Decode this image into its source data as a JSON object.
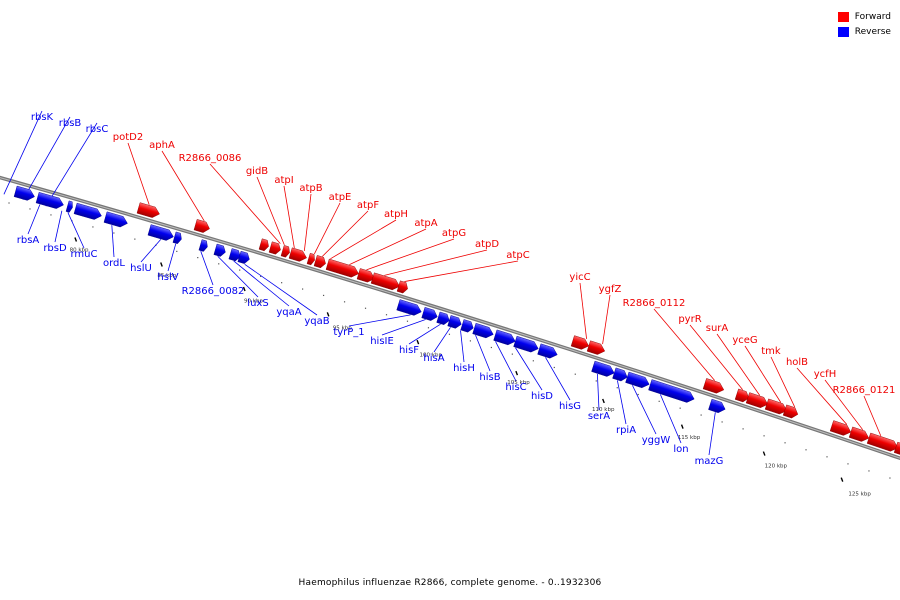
{
  "caption": "Haemophilus influenzae R2866, complete genome. - 0..1932306",
  "legend": [
    {
      "label": "Forward",
      "color": "#ff0000"
    },
    {
      "label": "Reverse",
      "color": "#0000ff"
    }
  ],
  "colors": {
    "forward": "#ee0000",
    "reverse": "#0000ee",
    "backbone": "#777777"
  },
  "ticks": [
    "80 kbp",
    "85 kbp",
    "90 kbp",
    "95 kbp",
    "100 kbp",
    "105 kbp",
    "110 kbp",
    "115 kbp",
    "120 kbp",
    "125 kbp"
  ],
  "genes": {
    "reverse": [
      "rbsK",
      "rbsB",
      "rbsC",
      "rbsA",
      "rbsD",
      "rmuC",
      "ordL",
      "hslU",
      "hslV",
      "R2866_0082",
      "luxS",
      "yqaA",
      "yqaB",
      "tyrP_1",
      "hisIE",
      "hisF",
      "hisA",
      "hisH",
      "hisB",
      "hisC",
      "hisD",
      "hisG",
      "serA",
      "rpiA",
      "yggW",
      "lon",
      "mazG"
    ],
    "forward": [
      "potD2",
      "aphA",
      "R2866_0086",
      "gidB",
      "atpI",
      "atpB",
      "atpE",
      "atpF",
      "atpH",
      "atpA",
      "atpG",
      "atpD",
      "atpC",
      "yicC",
      "ygfZ",
      "R2866_0112",
      "pyrR",
      "surA",
      "yceG",
      "tmk",
      "holB",
      "ycfH",
      "R2866_0121"
    ]
  }
}
